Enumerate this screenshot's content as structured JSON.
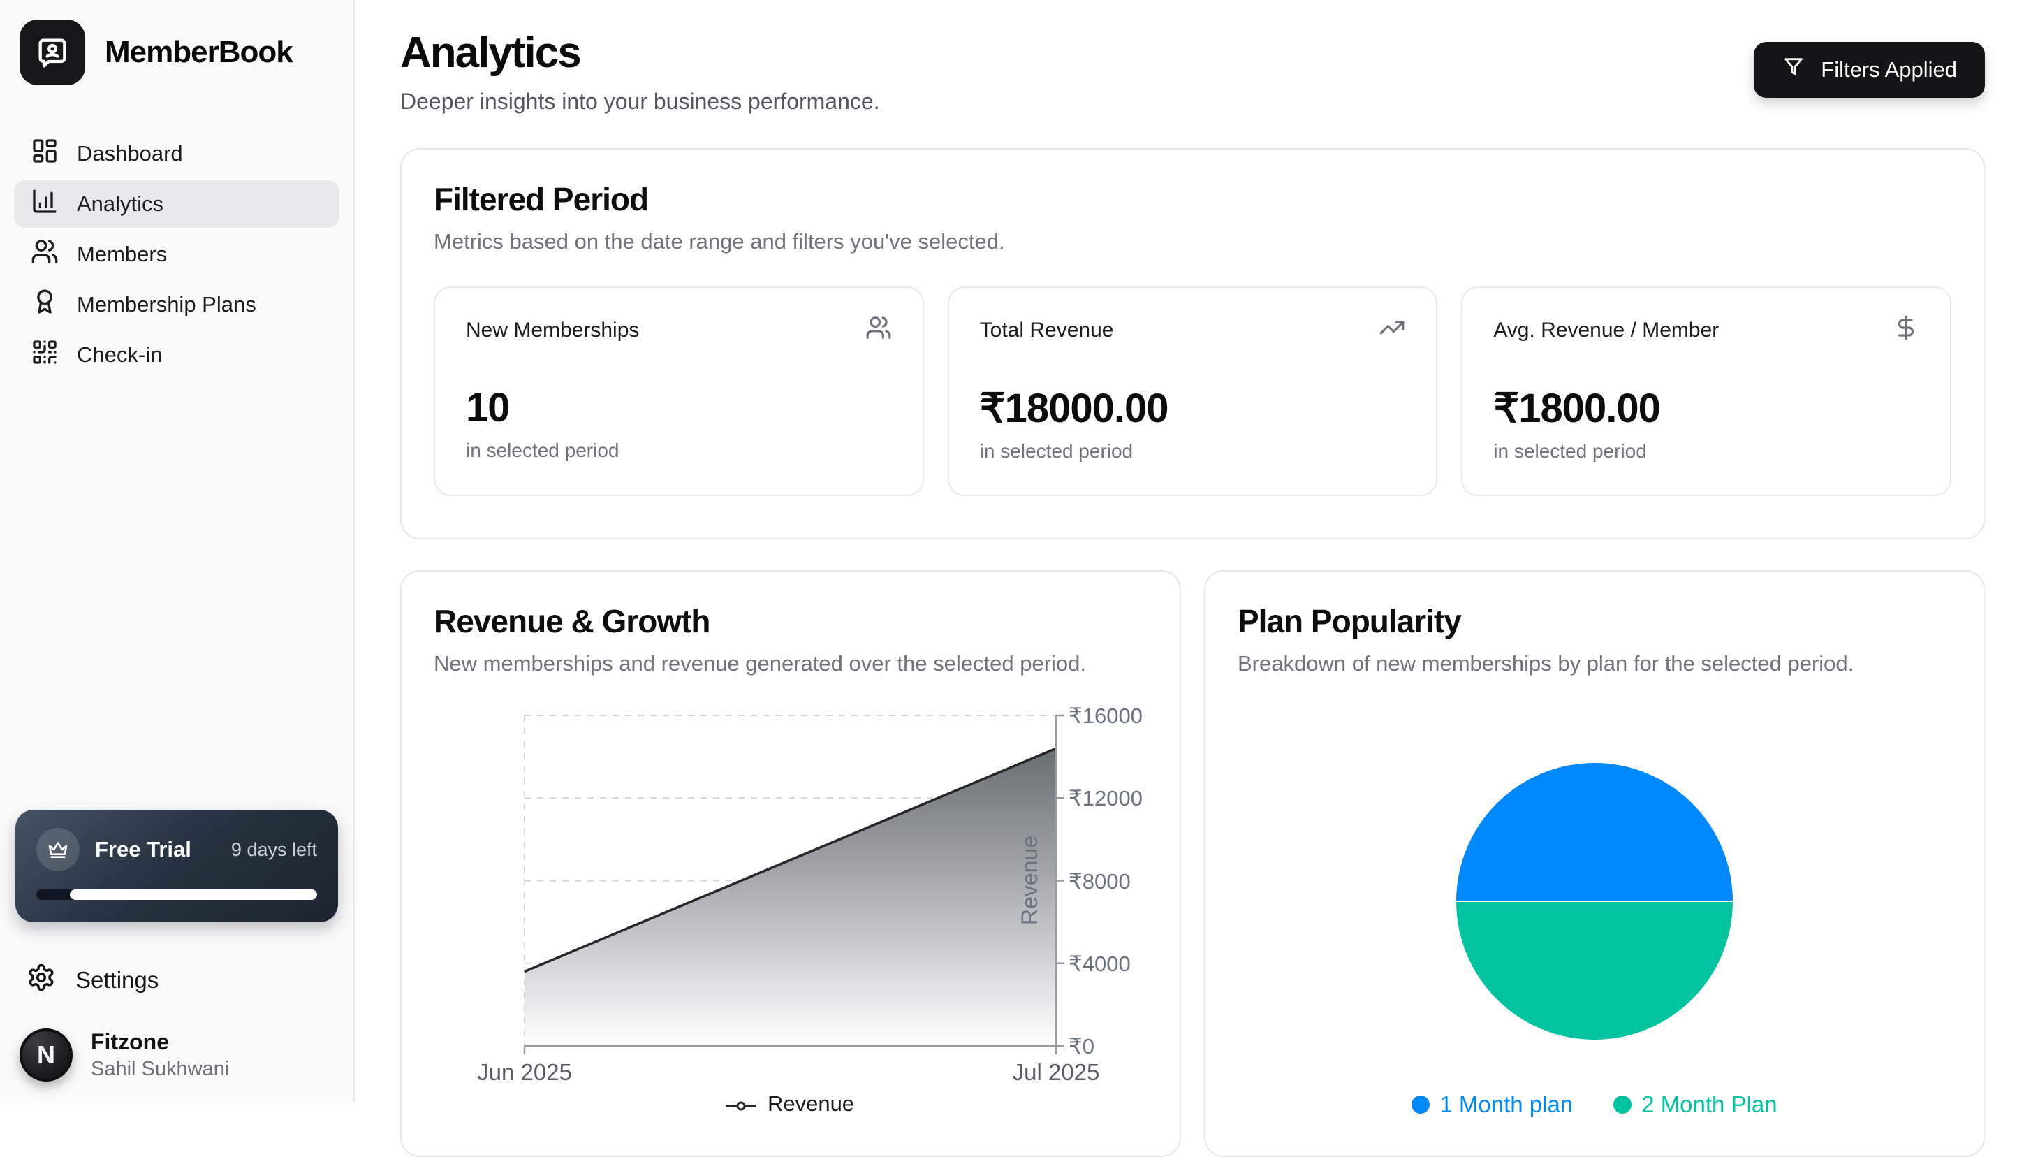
{
  "app": {
    "name": "MemberBook"
  },
  "sidebar": {
    "items": [
      {
        "label": "Dashboard"
      },
      {
        "label": "Analytics"
      },
      {
        "label": "Members"
      },
      {
        "label": "Membership Plans"
      },
      {
        "label": "Check-in"
      }
    ],
    "trial": {
      "title": "Free Trial",
      "remaining": "9 days left",
      "progress_pct": 12
    },
    "settings_label": "Settings",
    "user": {
      "org": "Fitzone",
      "name": "Sahil Sukhwani",
      "avatar_letter": "N"
    }
  },
  "header": {
    "title": "Analytics",
    "subtitle": "Deeper insights into your business performance.",
    "filters_button_label": "Filters Applied"
  },
  "filtered_period": {
    "title": "Filtered Period",
    "subtitle": "Metrics based on the date range and filters you've selected.",
    "metrics": [
      {
        "label": "New Memberships",
        "value": "10",
        "caption": "in selected period",
        "icon": "users-icon"
      },
      {
        "label": "Total Revenue",
        "value": "₹18000.00",
        "caption": "in selected period",
        "icon": "trending-up-icon"
      },
      {
        "label": "Avg. Revenue / Member",
        "value": "₹1800.00",
        "caption": "in selected period",
        "icon": "dollar-icon"
      }
    ]
  },
  "chart_data": [
    {
      "type": "area",
      "title": "Revenue & Growth",
      "subtitle": "New memberships and revenue generated over the selected period.",
      "x": [
        "Jun 2025",
        "Jul 2025"
      ],
      "series": [
        {
          "name": "Revenue",
          "values": [
            3600,
            14400
          ]
        }
      ],
      "xlabel": "",
      "ylabel": "Revenue",
      "ylim": [
        0,
        16000
      ],
      "yticks": [
        "₹0",
        "₹4000",
        "₹8000",
        "₹12000",
        "₹16000"
      ],
      "legend": [
        "Revenue"
      ],
      "legend_position": "bottom",
      "y_axis_side": "right",
      "grid": true,
      "line_color": "#27272a"
    },
    {
      "type": "pie",
      "title": "Plan Popularity",
      "subtitle": "Breakdown of new memberships by plan for the selected period.",
      "labels": [
        "1 Month plan",
        "2 Month Plan"
      ],
      "values": [
        5,
        5
      ],
      "colors": [
        "#0088FE",
        "#00C49F"
      ],
      "legend_position": "bottom"
    }
  ]
}
